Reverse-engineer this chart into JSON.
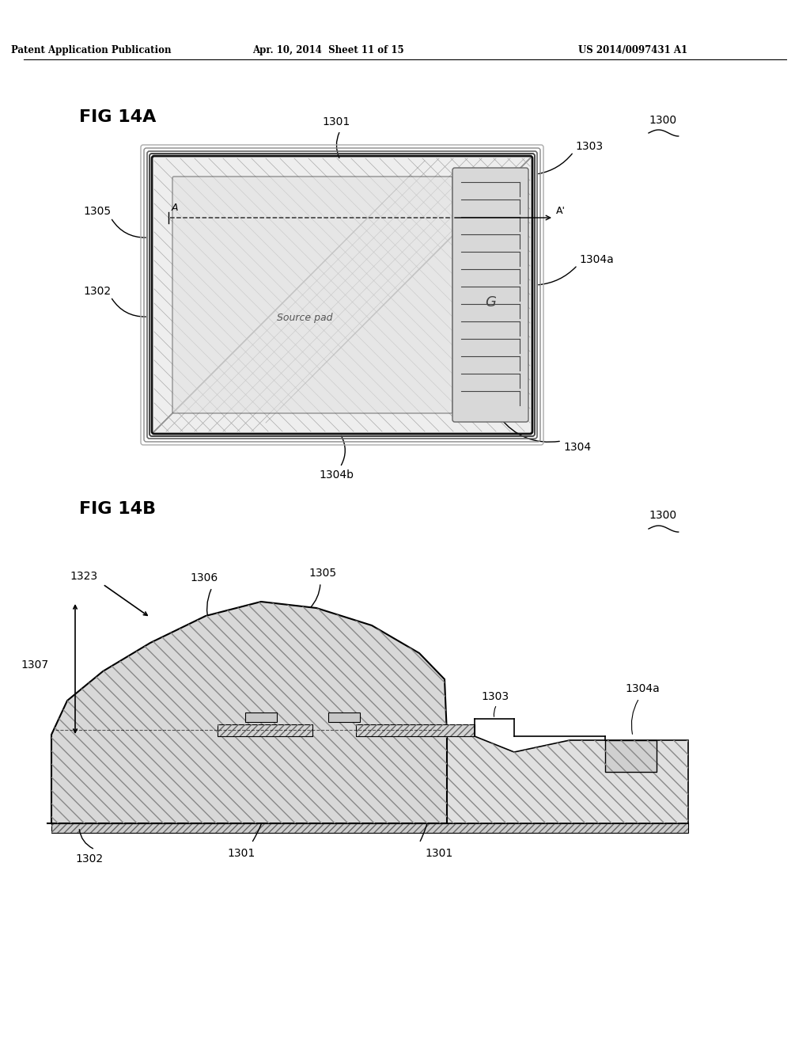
{
  "title_header": "Patent Application Publication",
  "date_header": "Apr. 10, 2014  Sheet 11 of 15",
  "patent_header": "US 2014/0097431 A1",
  "fig14a_label": "FIG 14A",
  "fig14b_label": "FIG 14B",
  "ref_1300": "1300",
  "ref_1301": "1301",
  "ref_1302": "1302",
  "ref_1303": "1303",
  "ref_1304": "1304",
  "ref_1304a": "1304a",
  "ref_1304b": "1304b",
  "ref_1305": "1305",
  "ref_1306": "1306",
  "ref_1307": "1307",
  "ref_1323": "1323",
  "source_pad_text": "Source pad",
  "line_color": "#000000",
  "bg_color": "#ffffff"
}
